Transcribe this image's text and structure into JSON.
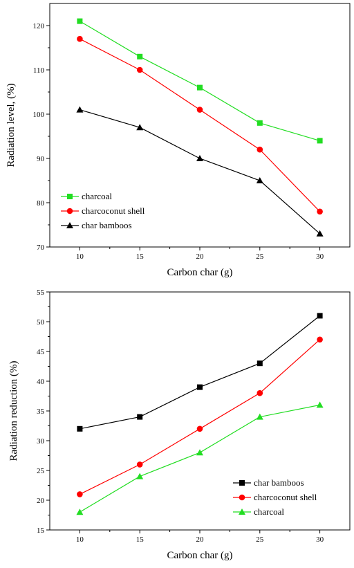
{
  "chart_data": [
    {
      "type": "line",
      "xlabel": "Carbon char (g)",
      "ylabel": "Radiation level, (%)",
      "x": [
        10,
        15,
        20,
        25,
        30
      ],
      "xlim": [
        7.5,
        32.5
      ],
      "ylim": [
        70,
        125
      ],
      "xticks": [
        10,
        15,
        20,
        25,
        30
      ],
      "yticks": [
        70,
        80,
        90,
        100,
        110,
        120
      ],
      "legend_position": "bottom-left",
      "grid": false,
      "series": [
        {
          "name": "charcoal",
          "values": [
            121,
            113,
            106,
            98,
            94
          ],
          "color": "#22dd22",
          "marker": "square"
        },
        {
          "name": "charcoconut shell",
          "values": [
            117,
            110,
            101,
            92,
            78
          ],
          "color": "#ff0000",
          "marker": "circle"
        },
        {
          "name": "char bamboos",
          "values": [
            101,
            97,
            90,
            85,
            73
          ],
          "color": "#000000",
          "marker": "triangle"
        }
      ]
    },
    {
      "type": "line",
      "xlabel": "Carbon char (g)",
      "ylabel": "Radiation reduction (%)",
      "x": [
        10,
        15,
        20,
        25,
        30
      ],
      "xlim": [
        7.5,
        32.5
      ],
      "ylim": [
        15,
        55
      ],
      "xticks": [
        10,
        15,
        20,
        25,
        30
      ],
      "yticks": [
        15,
        20,
        25,
        30,
        35,
        40,
        45,
        50,
        55
      ],
      "legend_position": "bottom-right",
      "grid": false,
      "series": [
        {
          "name": "char bamboos",
          "values": [
            32,
            34,
            39,
            43,
            51
          ],
          "color": "#000000",
          "marker": "square"
        },
        {
          "name": "charcoconut shell",
          "values": [
            21,
            26,
            32,
            38,
            47
          ],
          "color": "#ff0000",
          "marker": "circle"
        },
        {
          "name": "charcoal",
          "values": [
            18,
            24,
            28,
            34,
            36
          ],
          "color": "#22dd22",
          "marker": "triangle"
        }
      ]
    }
  ]
}
